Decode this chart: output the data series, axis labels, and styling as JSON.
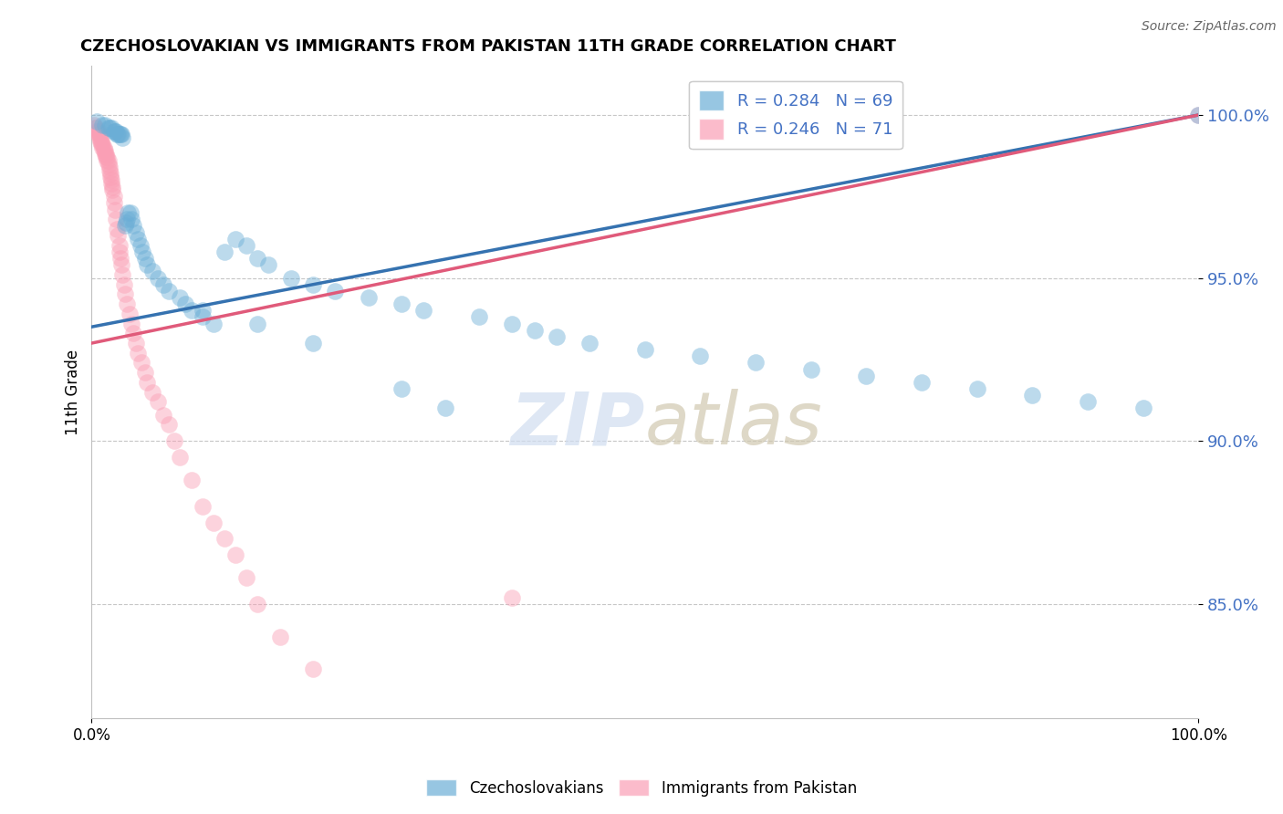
{
  "title": "CZECHOSLOVAKIAN VS IMMIGRANTS FROM PAKISTAN 11TH GRADE CORRELATION CHART",
  "source": "Source: ZipAtlas.com",
  "ylabel": "11th Grade",
  "ytick_labels": [
    "85.0%",
    "90.0%",
    "95.0%",
    "100.0%"
  ],
  "ytick_values": [
    0.85,
    0.9,
    0.95,
    1.0
  ],
  "xlim": [
    0.0,
    1.0
  ],
  "ylim": [
    0.815,
    1.015
  ],
  "legend_r1": "R = 0.284",
  "legend_n1": "N = 69",
  "legend_r2": "R = 0.246",
  "legend_n2": "N = 71",
  "color_blue": "#6baed6",
  "color_pink": "#fa9fb5",
  "color_blue_line": "#3572b0",
  "color_pink_line": "#e05a7a",
  "regression_blue_x0": 0.0,
  "regression_blue_y0": 0.935,
  "regression_blue_x1": 1.0,
  "regression_blue_y1": 1.0,
  "regression_pink_x0": 0.0,
  "regression_pink_y0": 0.93,
  "regression_pink_x1": 1.0,
  "regression_pink_y1": 1.0,
  "blue_scatter_x": [
    0.005,
    0.01,
    0.012,
    0.015,
    0.016,
    0.018,
    0.02,
    0.021,
    0.022,
    0.023,
    0.024,
    0.025,
    0.026,
    0.027,
    0.028,
    0.03,
    0.031,
    0.032,
    0.033,
    0.035,
    0.036,
    0.038,
    0.04,
    0.042,
    0.044,
    0.046,
    0.048,
    0.05,
    0.055,
    0.06,
    0.065,
    0.07,
    0.08,
    0.085,
    0.09,
    0.1,
    0.11,
    0.12,
    0.13,
    0.14,
    0.15,
    0.16,
    0.18,
    0.2,
    0.22,
    0.25,
    0.28,
    0.3,
    0.35,
    0.38,
    0.4,
    0.42,
    0.45,
    0.5,
    0.55,
    0.6,
    0.65,
    0.7,
    0.75,
    0.8,
    0.85,
    0.9,
    0.95,
    1.0,
    0.32,
    0.28,
    0.2,
    0.15,
    0.1
  ],
  "blue_scatter_y": [
    0.998,
    0.997,
    0.997,
    0.996,
    0.996,
    0.996,
    0.995,
    0.995,
    0.995,
    0.994,
    0.994,
    0.994,
    0.994,
    0.994,
    0.993,
    0.966,
    0.967,
    0.968,
    0.97,
    0.97,
    0.968,
    0.966,
    0.964,
    0.962,
    0.96,
    0.958,
    0.956,
    0.954,
    0.952,
    0.95,
    0.948,
    0.946,
    0.944,
    0.942,
    0.94,
    0.938,
    0.936,
    0.958,
    0.962,
    0.96,
    0.956,
    0.954,
    0.95,
    0.948,
    0.946,
    0.944,
    0.942,
    0.94,
    0.938,
    0.936,
    0.934,
    0.932,
    0.93,
    0.928,
    0.926,
    0.924,
    0.922,
    0.92,
    0.918,
    0.916,
    0.914,
    0.912,
    0.91,
    1.0,
    0.91,
    0.916,
    0.93,
    0.936,
    0.94
  ],
  "pink_scatter_x": [
    0.002,
    0.003,
    0.004,
    0.005,
    0.006,
    0.006,
    0.007,
    0.007,
    0.008,
    0.008,
    0.009,
    0.009,
    0.01,
    0.01,
    0.011,
    0.011,
    0.012,
    0.012,
    0.013,
    0.013,
    0.014,
    0.014,
    0.015,
    0.015,
    0.016,
    0.016,
    0.017,
    0.017,
    0.018,
    0.018,
    0.019,
    0.019,
    0.02,
    0.02,
    0.021,
    0.022,
    0.023,
    0.024,
    0.025,
    0.025,
    0.026,
    0.027,
    0.028,
    0.029,
    0.03,
    0.032,
    0.034,
    0.036,
    0.038,
    0.04,
    0.042,
    0.045,
    0.048,
    0.05,
    0.055,
    0.06,
    0.065,
    0.07,
    0.075,
    0.08,
    0.09,
    0.1,
    0.11,
    0.12,
    0.13,
    0.14,
    0.15,
    0.17,
    0.2,
    1.0,
    0.38
  ],
  "pink_scatter_y": [
    0.997,
    0.996,
    0.996,
    0.995,
    0.995,
    0.994,
    0.994,
    0.993,
    0.993,
    0.992,
    0.992,
    0.991,
    0.991,
    0.99,
    0.99,
    0.989,
    0.989,
    0.988,
    0.988,
    0.987,
    0.987,
    0.986,
    0.986,
    0.985,
    0.984,
    0.983,
    0.982,
    0.981,
    0.98,
    0.979,
    0.978,
    0.977,
    0.975,
    0.973,
    0.971,
    0.968,
    0.965,
    0.963,
    0.96,
    0.958,
    0.956,
    0.954,
    0.951,
    0.948,
    0.945,
    0.942,
    0.939,
    0.936,
    0.933,
    0.93,
    0.927,
    0.924,
    0.921,
    0.918,
    0.915,
    0.912,
    0.908,
    0.905,
    0.9,
    0.895,
    0.888,
    0.88,
    0.875,
    0.87,
    0.865,
    0.858,
    0.85,
    0.84,
    0.83,
    1.0,
    0.852
  ]
}
